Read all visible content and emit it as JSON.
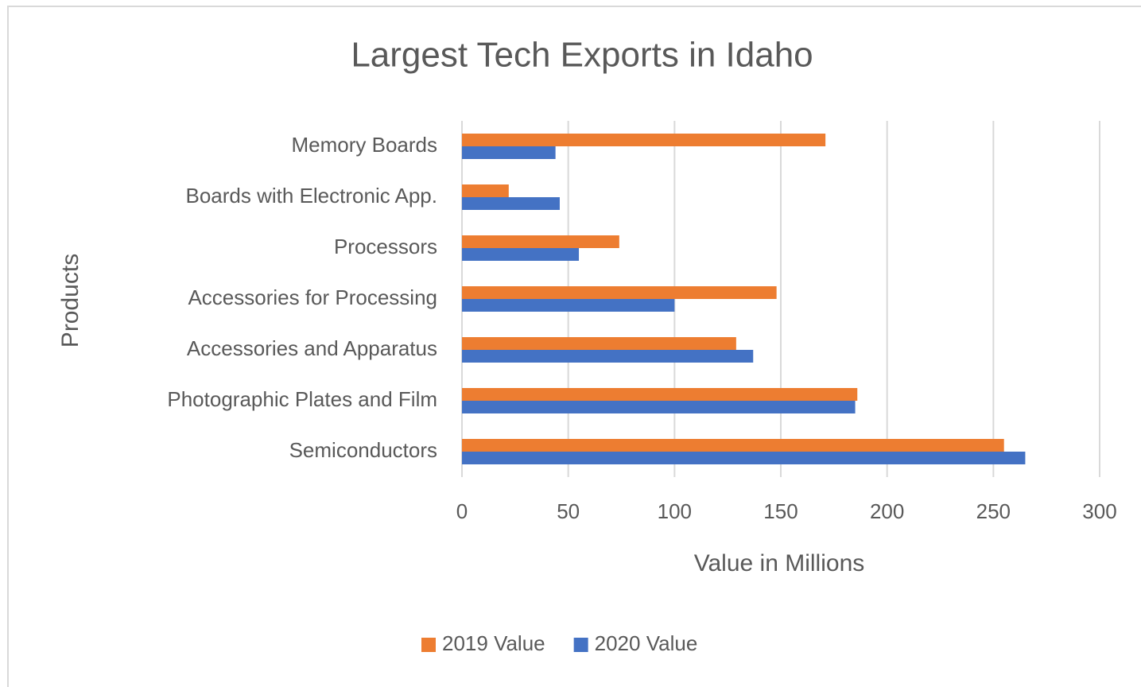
{
  "chart_data": {
    "type": "bar",
    "orientation": "horizontal",
    "title": "Largest Tech Exports in Idaho",
    "xlabel": "Value in Millions",
    "ylabel": "Products",
    "categories": [
      "Memory Boards",
      "Boards with Electronic App.",
      "Processors",
      "Accessories for Processing",
      "Accessories and Apparatus",
      "Photographic Plates and Film",
      "Semiconductors"
    ],
    "series": [
      {
        "name": "2019 Value",
        "color": "#ed7d31",
        "values": [
          171,
          22,
          74,
          148,
          129,
          186,
          255
        ]
      },
      {
        "name": "2020 Value",
        "color": "#4472c4",
        "values": [
          44,
          46,
          55,
          100,
          137,
          185,
          265
        ]
      }
    ],
    "xlim": [
      0,
      300
    ],
    "xticks": [
      0,
      50,
      100,
      150,
      200,
      250,
      300
    ],
    "grid": true,
    "legend": "bottom"
  }
}
